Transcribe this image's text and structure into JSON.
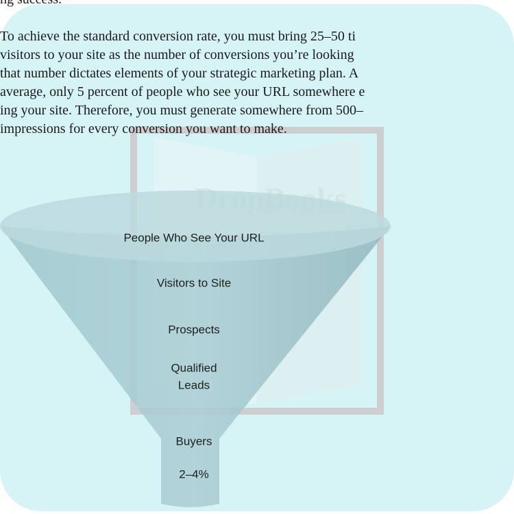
{
  "text": {
    "lead_fragment": "ng success.",
    "paragraph": [
      "To achieve the standard conversion rate, you must bring 25–50 ti",
      "visitors to your site as the number of conversions you’re looking",
      "that number dictates elements of your strategic marketing plan. A",
      "average, only 5 percent of people who see your URL somewhere e",
      "ing your site. Therefore, you must generate somewhere from 500–",
      "impressions for every conversion you want to make."
    ]
  },
  "watermark": "DropBooks",
  "funnel": {
    "stages": [
      "People Who See Your URL",
      "Visitors to Site",
      "Prospects"
    ],
    "qualified": [
      "Qualified",
      "Leads"
    ],
    "buyers": "Buyers",
    "rate": "2–4%"
  }
}
